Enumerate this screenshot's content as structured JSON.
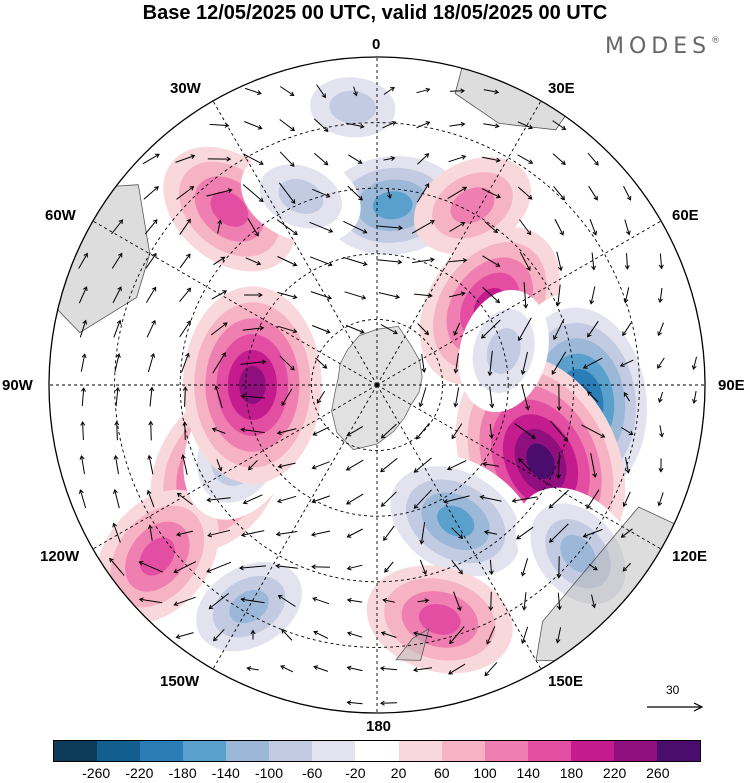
{
  "title": "Base 12/05/2025 00 UTC, valid 18/05/2025 00 UTC",
  "brand": {
    "name": "MODES",
    "mark": "®"
  },
  "longitude_labels": {
    "0": "0",
    "30E": "30E",
    "60E": "60E",
    "90E": "90E",
    "120E": "120E",
    "150E": "150E",
    "180": "180",
    "150W": "150W",
    "120W": "120W",
    "90W": "90W",
    "60W": "60W",
    "30W": "30W"
  },
  "wind_scale": {
    "value": "30",
    "icon": "arrow-right-icon"
  },
  "colorbar": {
    "colors": [
      "#0d3c5a",
      "#125f8f",
      "#2b7db7",
      "#5aa0cc",
      "#9bb8d9",
      "#c2cbe2",
      "#e3e3f0",
      "#ffffff",
      "#f9d8dc",
      "#f6b3c3",
      "#ef7fb0",
      "#e34ea2",
      "#c41c8e",
      "#8f0f7f",
      "#4a0d6d"
    ],
    "ticks": [
      "-260",
      "-220",
      "-180",
      "-140",
      "-100",
      "-60",
      "-20",
      "20",
      "60",
      "100",
      "140",
      "180",
      "220",
      "260"
    ]
  },
  "map": {
    "projection": "south-polar-stereographic",
    "grid": true,
    "anomaly_centers": [
      {
        "lon": 5,
        "colat": 0.55,
        "value": -140
      },
      {
        "lon": 55,
        "colat": 0.42,
        "value": 140
      },
      {
        "lon": 95,
        "colat": 0.62,
        "value": -220
      },
      {
        "lon": 115,
        "colat": 0.55,
        "value": 220
      },
      {
        "lon": 150,
        "colat": 0.48,
        "value": -140
      },
      {
        "lon": 165,
        "colat": 0.74,
        "value": 100
      },
      {
        "lon": -150,
        "colat": 0.78,
        "value": -120
      },
      {
        "lon": -118,
        "colat": 0.55,
        "value": 140
      },
      {
        "lon": -128,
        "colat": 0.85,
        "value": 100
      },
      {
        "lon": -115,
        "colat": 0.46,
        "value": -100
      },
      {
        "lon": -90,
        "colat": 0.38,
        "value": 180
      },
      {
        "lon": -40,
        "colat": 0.7,
        "value": 120
      },
      {
        "lon": -22,
        "colat": 0.62,
        "value": -60
      },
      {
        "lon": 28,
        "colat": 0.62,
        "value": 60
      },
      {
        "lon": 75,
        "colat": 0.4,
        "value": -60
      },
      {
        "lon": 130,
        "colat": 0.8,
        "value": -100
      },
      {
        "lon": -5,
        "colat": 0.85,
        "value": -60
      }
    ]
  }
}
